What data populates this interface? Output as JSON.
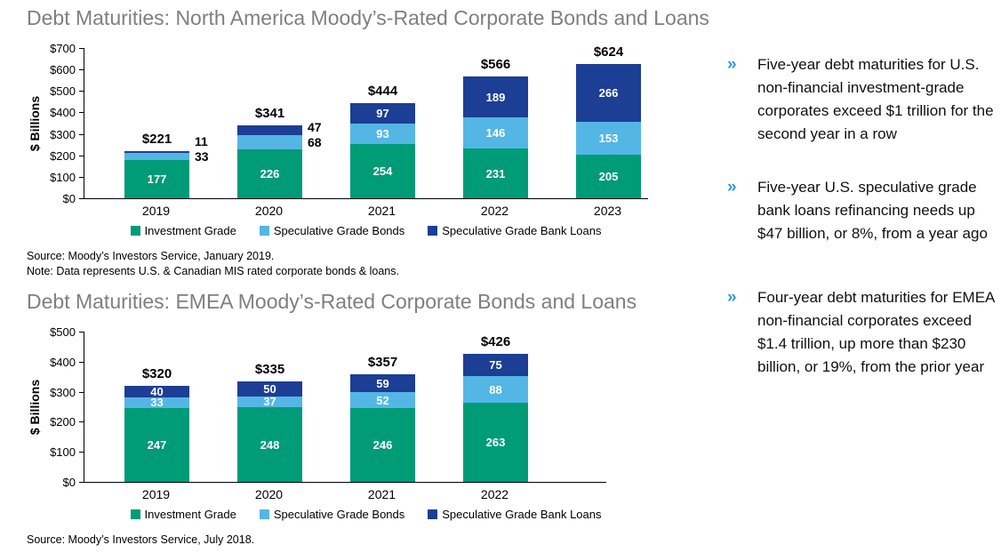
{
  "colors": {
    "bullet_marker": "#2D9CDB",
    "title": "#7F7F7F"
  },
  "chart_data": [
    {
      "type": "stacked-bar",
      "title": "Debt Maturities: North America Moody’s-Rated Corporate Bonds and Loans",
      "ylabel": "$ Billions",
      "ylim": [
        0,
        700
      ],
      "ytick_step": 100,
      "ytick_prefix": "$",
      "grid": false,
      "legend_position": "bottom",
      "categories": [
        "2019",
        "2020",
        "2021",
        "2022",
        "2023"
      ],
      "series": [
        {
          "name": "Investment Grade",
          "color": "#009B77",
          "values": [
            177,
            226,
            254,
            231,
            205
          ]
        },
        {
          "name": "Speculative Grade Bonds",
          "color": "#54B6E5",
          "values": [
            33,
            68,
            93,
            146,
            153
          ]
        },
        {
          "name": "Speculative Grade Bank Loans",
          "color": "#1C3E94",
          "values": [
            11,
            47,
            97,
            189,
            266
          ]
        }
      ],
      "totals": [
        "$221",
        "$341",
        "$444",
        "$566",
        "$624"
      ],
      "label_outside": [
        [
          0,
          1
        ],
        [
          0,
          2
        ],
        [
          1,
          1
        ],
        [
          1,
          2
        ]
      ],
      "source": "Source: Moody’s Investors Service, January 2019.",
      "note": "Note: Data represents U.S. & Canadian MIS rated corporate bonds & loans."
    },
    {
      "type": "stacked-bar",
      "title": "Debt Maturities: EMEA Moody’s-Rated Corporate Bonds and Loans",
      "ylabel": "$ Billions",
      "ylim": [
        0,
        500
      ],
      "ytick_step": 100,
      "ytick_prefix": "$",
      "grid": false,
      "legend_position": "bottom",
      "categories": [
        "2019",
        "2020",
        "2021",
        "2022"
      ],
      "series": [
        {
          "name": "Investment Grade",
          "color": "#009B77",
          "values": [
            247,
            248,
            246,
            263
          ]
        },
        {
          "name": "Speculative Grade Bonds",
          "color": "#54B6E5",
          "values": [
            33,
            37,
            52,
            88
          ]
        },
        {
          "name": "Speculative Grade Bank Loans",
          "color": "#1C3E94",
          "values": [
            40,
            50,
            59,
            75
          ]
        }
      ],
      "totals": [
        "$320",
        "$335",
        "$357",
        "$426"
      ],
      "label_outside": [],
      "source": "Source: Moody’s Investors Service, July 2018."
    }
  ],
  "bullets": [
    {
      "marker": "»",
      "text": "Five-year debt maturities for U.S. non-financial investment-grade corporates exceed $1 trillion for the second year in a row"
    },
    {
      "marker": "»",
      "text": "Five-year U.S. speculative grade bank loans refinancing needs up $47 billion, or 8%, from a year ago"
    },
    {
      "marker": "»",
      "text": "Four-year debt maturities for EMEA non-financial corporates exceed $1.4 trillion, up more than $230 billion, or 19%, from the prior year"
    }
  ]
}
